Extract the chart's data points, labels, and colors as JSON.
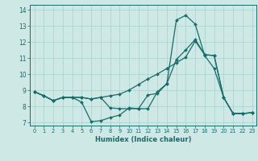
{
  "xlabel": "Humidex (Indice chaleur)",
  "xlim": [
    -0.5,
    23.5
  ],
  "ylim": [
    6.8,
    14.3
  ],
  "xticks": [
    0,
    1,
    2,
    3,
    4,
    5,
    6,
    7,
    8,
    9,
    10,
    11,
    12,
    13,
    14,
    15,
    16,
    17,
    18,
    19,
    20,
    21,
    22,
    23
  ],
  "yticks": [
    7,
    8,
    9,
    10,
    11,
    12,
    13,
    14
  ],
  "background_color": "#cde8e5",
  "grid_color": "#aed4d0",
  "line_color": "#1a6b6b",
  "line1_y": [
    8.9,
    8.65,
    8.35,
    8.55,
    8.55,
    8.25,
    7.05,
    7.1,
    7.3,
    7.45,
    7.9,
    7.85,
    8.7,
    8.8,
    9.4,
    10.9,
    11.5,
    12.15,
    11.2,
    11.15,
    8.55,
    7.55,
    7.55,
    7.6
  ],
  "line2_y": [
    8.9,
    8.65,
    8.35,
    8.55,
    8.55,
    8.55,
    8.45,
    8.55,
    8.65,
    8.75,
    9.0,
    9.35,
    9.7,
    10.0,
    10.35,
    10.7,
    11.05,
    12.05,
    11.2,
    11.15,
    8.55,
    7.55,
    7.55,
    7.6
  ],
  "line3_y": [
    8.9,
    8.65,
    8.35,
    8.55,
    8.55,
    8.55,
    8.45,
    8.55,
    7.9,
    7.85,
    7.85,
    7.85,
    7.85,
    8.9,
    9.4,
    13.35,
    13.65,
    13.1,
    11.15,
    10.35,
    8.55,
    7.55,
    7.55,
    7.6
  ]
}
